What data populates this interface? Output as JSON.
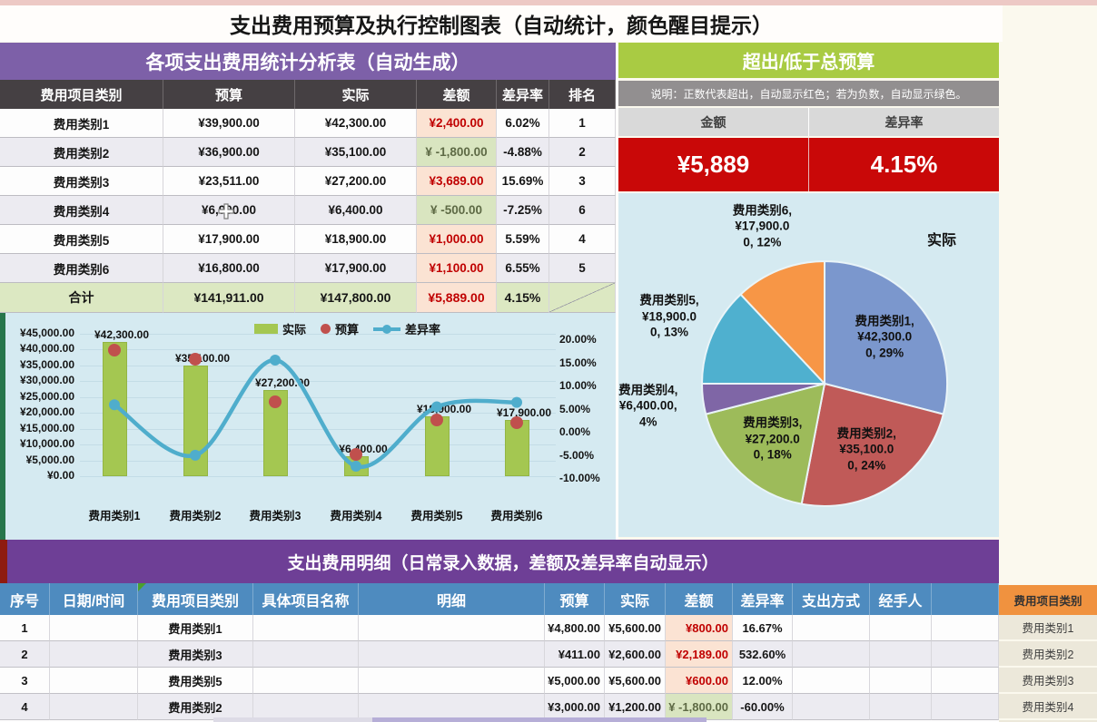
{
  "title": "支出费用预算及执行控制图表（自动统计，颜色醒目提示）",
  "summary_table": {
    "header": "各项支出费用统计分析表（自动生成）",
    "columns": [
      "费用项目类别",
      "预算",
      "实际",
      "差额",
      "差异率",
      "排名"
    ],
    "rows": [
      {
        "category": "费用类别1",
        "budget": "¥39,900.00",
        "actual": "¥42,300.00",
        "diff": "¥2,400.00",
        "diff_positive": true,
        "rate": "6.02%",
        "rank": "1"
      },
      {
        "category": "费用类别2",
        "budget": "¥36,900.00",
        "actual": "¥35,100.00",
        "diff": "¥ -1,800.00",
        "diff_positive": false,
        "rate": "-4.88%",
        "rank": "2"
      },
      {
        "category": "费用类别3",
        "budget": "¥23,511.00",
        "actual": "¥27,200.00",
        "diff": "¥3,689.00",
        "diff_positive": true,
        "rate": "15.69%",
        "rank": "3"
      },
      {
        "category": "费用类别4",
        "budget": "¥6,900.00",
        "actual": "¥6,400.00",
        "diff": "¥ -500.00",
        "diff_positive": false,
        "rate": "-7.25%",
        "rank": "6"
      },
      {
        "category": "费用类别5",
        "budget": "¥17,900.00",
        "actual": "¥18,900.00",
        "diff": "¥1,000.00",
        "diff_positive": true,
        "rate": "5.59%",
        "rank": "4"
      },
      {
        "category": "费用类别6",
        "budget": "¥16,800.00",
        "actual": "¥17,900.00",
        "diff": "¥1,100.00",
        "diff_positive": true,
        "rate": "6.55%",
        "rank": "5"
      }
    ],
    "total": {
      "category": "合计",
      "budget": "¥141,911.00",
      "actual": "¥147,800.00",
      "diff": "¥5,889.00",
      "diff_positive": true,
      "rate": "4.15%",
      "rank": ""
    }
  },
  "over_budget": {
    "header": "超出/低于总预算",
    "note": "说明：正数代表超出，自动显示红色；若为负数，自动显示绿色。",
    "amount_label": "金额",
    "rate_label": "差异率",
    "amount_value": "¥5,889",
    "rate_value": "4.15%"
  },
  "chart_data": [
    {
      "type": "bar",
      "subtype": "combo-bar-point-line",
      "categories": [
        "费用类别1",
        "费用类别2",
        "费用类别3",
        "费用类别4",
        "费用类别5",
        "费用类别6"
      ],
      "series": [
        {
          "name": "实际",
          "mark": "bar",
          "axis": "left",
          "values": [
            42300,
            35100,
            27200,
            6400,
            18900,
            17900
          ],
          "labels": [
            "¥42,300.00",
            "¥35,100.00",
            "¥27,200.00",
            "¥6,400.00",
            "¥18,900.00",
            "¥17,900.00"
          ],
          "color": "#a4c751"
        },
        {
          "name": "预算",
          "mark": "point",
          "axis": "left",
          "values": [
            39900,
            36900,
            23511,
            6900,
            17900,
            16800
          ],
          "color": "#c0504d"
        },
        {
          "name": "差异率",
          "mark": "line",
          "axis": "right",
          "values": [
            6.02,
            -4.88,
            15.69,
            -7.25,
            5.59,
            6.55
          ],
          "color": "#4fadcc"
        }
      ],
      "y_left": {
        "min": 0,
        "max": 45000,
        "step": 5000,
        "ticks": [
          "¥45,000.00",
          "¥40,000.00",
          "¥35,000.00",
          "¥30,000.00",
          "¥25,000.00",
          "¥20,000.00",
          "¥15,000.00",
          "¥10,000.00",
          "¥5,000.00",
          "¥0.00"
        ]
      },
      "y_right": {
        "min": -10,
        "max": 20,
        "step": 5,
        "ticks": [
          "20.00%",
          "15.00%",
          "10.00%",
          "5.00%",
          "0.00%",
          "-5.00%",
          "-10.00%"
        ]
      },
      "legend": [
        "实际",
        "预算",
        "差异率"
      ],
      "grid": true,
      "legend_position": "top"
    },
    {
      "type": "pie",
      "title": "实际",
      "slices": [
        {
          "name": "费用类别1",
          "value": 42300,
          "pct": 29,
          "color": "#7b97cd",
          "label_lines": [
            "费用类别1,",
            "¥42,300.0",
            "0, 29%"
          ],
          "label_r": 0.62
        },
        {
          "name": "费用类别2",
          "value": 35100,
          "pct": 24,
          "color": "#c05a58",
          "label_lines": [
            "费用类别2,",
            "¥35,100.0",
            "0, 24%"
          ],
          "label_r": 0.64
        },
        {
          "name": "费用类别3",
          "value": 27200,
          "pct": 18,
          "color": "#9dbb5a",
          "label_lines": [
            "费用类别3,",
            "¥27,200.0",
            "0, 18%"
          ],
          "label_r": 0.62
        },
        {
          "name": "费用类别4",
          "value": 6400,
          "pct": 4,
          "color": "#7f66a6",
          "label_lines": [
            "费用类别4,",
            "¥6,400.00,",
            "4%"
          ],
          "label_r": 1.45
        },
        {
          "name": "费用类别5",
          "value": 18900,
          "pct": 13,
          "color": "#4fb0cf",
          "label_lines": [
            "费用类别5,",
            "¥18,900.0",
            "0, 13%"
          ],
          "label_r": 1.38
        },
        {
          "name": "费用类别6",
          "value": 17900,
          "pct": 12,
          "color": "#f79646",
          "label_lines": [
            "费用类别6,",
            "¥17,900.0",
            "0, 12%"
          ],
          "label_r": 1.38
        }
      ],
      "legend_position": "none"
    }
  ],
  "detail_table": {
    "header": "支出费用明细（日常录入数据，差额及差异率自动显示）",
    "columns": [
      "序号",
      "日期/时间",
      "费用项目类别",
      "具体项目名称",
      "明细",
      "预算",
      "实际",
      "差额",
      "差异率",
      "支出方式",
      "经手人",
      ""
    ],
    "rows": [
      {
        "no": "1",
        "date": "",
        "category": "费用类别1",
        "item": "",
        "detail": "",
        "budget": "¥4,800.00",
        "actual": "¥5,600.00",
        "diff": "¥800.00",
        "diff_positive": true,
        "rate": "16.67%",
        "pay_method": "",
        "handler": "",
        "extra": ""
      },
      {
        "no": "2",
        "date": "",
        "category": "费用类别3",
        "item": "",
        "detail": "",
        "budget": "¥411.00",
        "actual": "¥2,600.00",
        "diff": "¥2,189.00",
        "diff_positive": true,
        "rate": "532.60%",
        "pay_method": "",
        "handler": "",
        "extra": ""
      },
      {
        "no": "3",
        "date": "",
        "category": "费用类别5",
        "item": "",
        "detail": "",
        "budget": "¥5,000.00",
        "actual": "¥5,600.00",
        "diff": "¥600.00",
        "diff_positive": true,
        "rate": "12.00%",
        "pay_method": "",
        "handler": "",
        "extra": ""
      },
      {
        "no": "4",
        "date": "",
        "category": "费用类别2",
        "item": "",
        "detail": "",
        "budget": "¥3,000.00",
        "actual": "¥1,200.00",
        "diff": "¥ -1,800.00",
        "diff_positive": false,
        "rate": "-60.00%",
        "pay_method": "",
        "handler": "",
        "extra": ""
      }
    ]
  },
  "sidebar": {
    "header": "费用项目类别",
    "items": [
      "费用类别1",
      "费用类别2",
      "费用类别3",
      "费用类别4"
    ]
  },
  "colors": {
    "accent_purple": "#7d60a8",
    "accent_green": "#a9cb43",
    "banner_red": "#c90808",
    "positive_text": "#c00000",
    "positive_bg": "#fbe3d3",
    "negative_bg": "#d9e5c0",
    "detail_header_blue": "#4e8bbf",
    "sidebar_orange": "#f0923f",
    "chart_bg": "#d5eaf1"
  }
}
